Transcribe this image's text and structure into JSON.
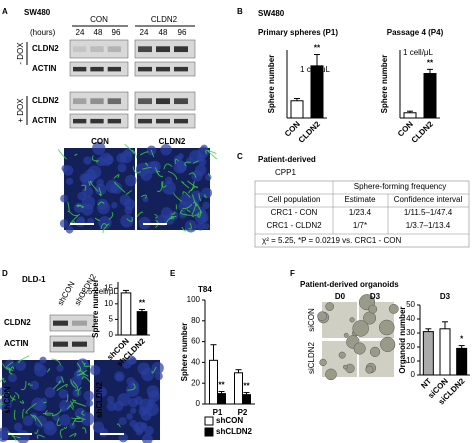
{
  "figure": {
    "panels": [
      "A",
      "B",
      "C",
      "D",
      "E",
      "F"
    ],
    "A": {
      "cell_line": "SW480",
      "groups": [
        "CON",
        "CLDN2"
      ],
      "hours_label": "(hours)",
      "hours": [
        "24",
        "48",
        "96",
        "24",
        "48",
        "96"
      ],
      "conditions": [
        "- DOX",
        "+ DOX"
      ],
      "blots": [
        "CLDN2",
        "ACTIN",
        "CLDN2",
        "ACTIN"
      ],
      "image_labels": [
        "CON",
        "CLDN2"
      ]
    },
    "B": {
      "cell_line": "SW480"
    },
    "C": {
      "source": "Patient-derived",
      "line": "CPP1",
      "table": {
        "group_header": "Sphere-forming frequency",
        "columns": [
          "Cell population",
          "Estimate",
          "Confidence interval"
        ],
        "rows": [
          [
            "CRC1 - CON",
            "1/23.4",
            "1/11.5–1/47.4"
          ],
          [
            "CRC1 - CLDN2",
            "1/7*",
            "1/3.7–1/13.4"
          ]
        ],
        "footer": "χ² = 5.25, *P = 0.0219 vs. CRC1 - CON"
      }
    },
    "D": {
      "cell_line": "DLD-1",
      "lanes": [
        "shCON",
        "shCLDN2"
      ],
      "blots": [
        "CLDN2",
        "ACTIN"
      ],
      "image_labels": [
        "shCON",
        "shCLDN2"
      ]
    },
    "E": {
      "cell_line": "T84"
    },
    "F": {
      "title": "Patient-derived organoids",
      "days": [
        "D0",
        "D3"
      ],
      "rows": [
        "siCON",
        "siCLDN2"
      ]
    }
  },
  "chart_data": [
    {
      "type": "bar",
      "title": "Primary spheres (P1)",
      "ylabel": "Sphere number",
      "categories": [
        "CON",
        "CLDN2"
      ],
      "values": [
        38,
        115
      ],
      "errors": [
        5,
        25
      ],
      "colors": [
        "#ffffff",
        "#000000"
      ],
      "ylim": [
        0,
        150
      ],
      "value_annotations": [
        null,
        "**"
      ],
      "note": "1 cell/μL"
    },
    {
      "type": "bar",
      "title": "Passage 4 (P4)",
      "ylabel": "Sphere number",
      "categories": [
        "CON",
        "CLDN2"
      ],
      "values": [
        10,
        85
      ],
      "errors": [
        3,
        8
      ],
      "colors": [
        "#ffffff",
        "#000000"
      ],
      "ylim": [
        0,
        130
      ],
      "value_annotations": [
        null,
        "**"
      ],
      "note": "1 cell/μL"
    },
    {
      "type": "bar",
      "ylabel": "Sphere number",
      "categories": [
        "shCON",
        "shCLDN2"
      ],
      "values": [
        13.5,
        7.5
      ],
      "errors": [
        0.8,
        0.7
      ],
      "colors": [
        "#ffffff",
        "#000000"
      ],
      "ylim": [
        0,
        17
      ],
      "yticks": [
        0,
        5,
        10,
        15
      ],
      "value_annotations": [
        null,
        "**"
      ],
      "note": "2.5 cell/μL"
    },
    {
      "type": "bar",
      "ylabel": "Sphere number",
      "categories": [
        "P1",
        "P2"
      ],
      "series": [
        {
          "name": "shCON",
          "color": "#ffffff",
          "values": [
            42,
            30
          ],
          "errors": [
            15,
            3
          ]
        },
        {
          "name": "shCLDN2",
          "color": "#000000",
          "values": [
            10,
            9
          ],
          "errors": [
            2,
            2
          ],
          "value_annotations": [
            "**",
            "**"
          ]
        }
      ],
      "ylim": [
        0,
        100
      ],
      "yticks": [
        0,
        20,
        40,
        60,
        80,
        100
      ]
    },
    {
      "type": "bar",
      "title": "D3",
      "ylabel": "Organoid number",
      "categories": [
        "NT",
        "siCON",
        "siCLDN2"
      ],
      "values": [
        31,
        33,
        19
      ],
      "errors": [
        2,
        5,
        2
      ],
      "colors": [
        "#aaaaaa",
        "#ffffff",
        "#000000"
      ],
      "ylim": [
        0,
        50
      ],
      "yticks": [
        0,
        10,
        20,
        30,
        40,
        50
      ],
      "value_annotations": [
        null,
        null,
        "*"
      ]
    }
  ]
}
